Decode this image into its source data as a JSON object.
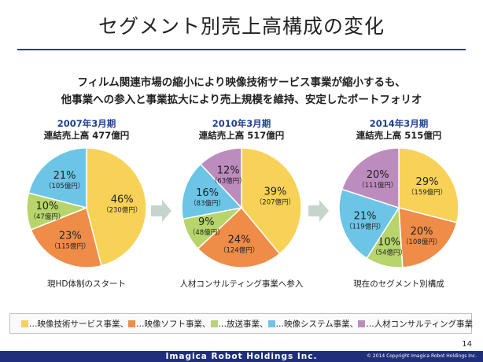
{
  "title": "セグメント別売上高構成の変化",
  "subtitle_line1": "フィルム関連市場の縮小により映像技術サービス事業が縮小するも、",
  "subtitle_line2": "他事業への参入と事業拡大により売上規模を維持、安定したポートフォリオ",
  "segments": [
    {
      "name": "映像技術サービス事業",
      "color": "#f8d257"
    },
    {
      "name": "映像ソフト事業",
      "color": "#ef8c48"
    },
    {
      "name": "放送事業",
      "color": "#b7d56b"
    },
    {
      "name": "映像システム事業",
      "color": "#6cc5e6"
    },
    {
      "name": "人材コンサルティング事業",
      "color": "#bd8cbf"
    }
  ],
  "legend": {
    "items": [
      "…映像技術サービス事業、",
      "…映像ソフト事業、",
      "…放送事業、",
      "…映像システム事業、",
      "…人材コンサルティング事業"
    ]
  },
  "chart_data": [
    {
      "type": "pie",
      "title": "2007年3月期",
      "subtitle": "連結売上高 477億円",
      "caption": "現HD体制のスタート",
      "slices": [
        {
          "segment": 0,
          "pct": 46,
          "pct_label": "46%",
          "amount_label": "（230億円）"
        },
        {
          "segment": 1,
          "pct": 23,
          "pct_label": "23%",
          "amount_label": "（115億円）"
        },
        {
          "segment": 2,
          "pct": 10,
          "pct_label": "10%",
          "amount_label": "（47億円）"
        },
        {
          "segment": 3,
          "pct": 21,
          "pct_label": "21%",
          "amount_label": "（105億円）"
        }
      ]
    },
    {
      "type": "pie",
      "title": "2010年3月期",
      "subtitle": "連結売上高 517億円",
      "caption": "人材コンサルティング事業へ参入",
      "slices": [
        {
          "segment": 0,
          "pct": 39,
          "pct_label": "39%",
          "amount_label": "（207億円）"
        },
        {
          "segment": 1,
          "pct": 24,
          "pct_label": "24%",
          "amount_label": "（124億円）"
        },
        {
          "segment": 2,
          "pct": 9,
          "pct_label": "9%",
          "amount_label": "（48億円）"
        },
        {
          "segment": 3,
          "pct": 16,
          "pct_label": "16%",
          "amount_label": "（83億円）"
        },
        {
          "segment": 4,
          "pct": 12,
          "pct_label": "12%",
          "amount_label": "（63億円）"
        }
      ]
    },
    {
      "type": "pie",
      "title": "2014年3月期",
      "subtitle": "連結売上高 515億円",
      "caption": "現在のセグメント別構成",
      "slices": [
        {
          "segment": 0,
          "pct": 29,
          "pct_label": "29%",
          "amount_label": "（159億円）"
        },
        {
          "segment": 1,
          "pct": 20,
          "pct_label": "20%",
          "amount_label": "（108億円）"
        },
        {
          "segment": 2,
          "pct": 10,
          "pct_label": "10%",
          "amount_label": "（54億円）"
        },
        {
          "segment": 3,
          "pct": 21,
          "pct_label": "21%",
          "amount_label": "（119億円）"
        },
        {
          "segment": 4,
          "pct": 20,
          "pct_label": "20%",
          "amount_label": "（111億円）"
        }
      ]
    }
  ],
  "page_number": "14",
  "footer": {
    "company": "Imagica Robot Holdings Inc.",
    "copyright": "© 2014 Copyright Imagica Robot Holdings Inc."
  }
}
